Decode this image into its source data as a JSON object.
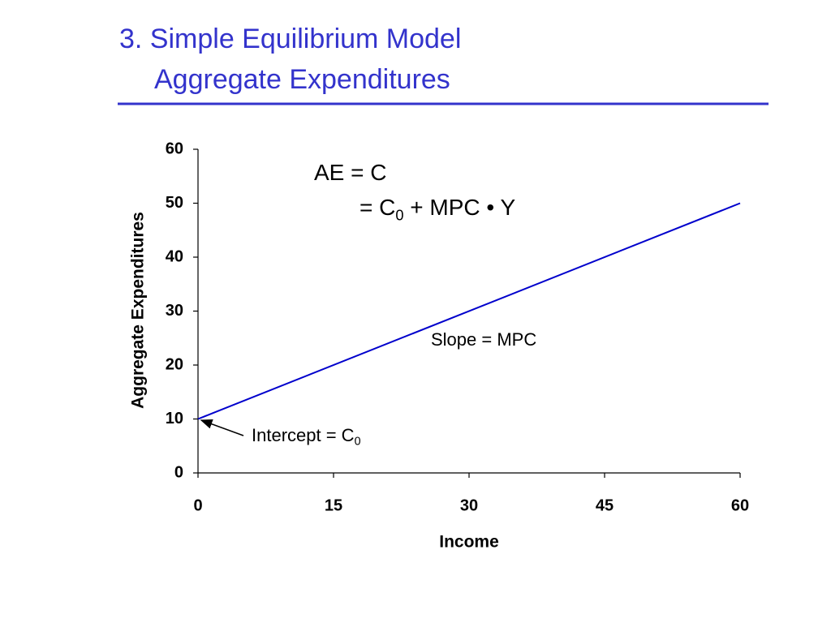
{
  "title": [
    "3. Simple Equilibrium Model",
    "Aggregate Expenditures"
  ],
  "chart_data": {
    "type": "line",
    "x_label": "Income",
    "y_label": "Aggregate Expenditures",
    "x": [
      0,
      60
    ],
    "series": [
      {
        "name": "AE",
        "color": "#0000cc",
        "values": [
          10,
          50
        ]
      }
    ],
    "xlim": [
      0,
      60
    ],
    "xticks": [
      0,
      15,
      30,
      45,
      60
    ],
    "ylim": [
      0,
      60
    ],
    "yticks": [
      0,
      10,
      20,
      30,
      40,
      50,
      60
    ],
    "annotations": [
      {
        "parts": [
          "AE = C"
        ]
      },
      {
        "parts": [
          "= C",
          "0",
          " + MPC • Y"
        ]
      },
      {
        "parts": [
          "Slope = MPC"
        ]
      },
      {
        "parts": [
          "Intercept = C",
          "0"
        ]
      }
    ]
  }
}
